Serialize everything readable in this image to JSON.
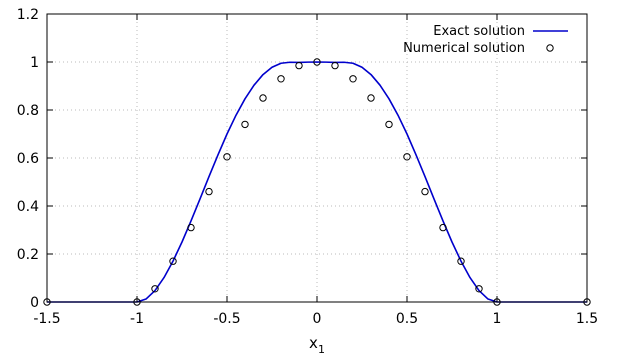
{
  "chart_data": {
    "type": "line",
    "title": "",
    "xlabel": "x",
    "xlabel_subscript": "1",
    "ylabel": "",
    "xlim": [
      -1.5,
      1.5
    ],
    "ylim": [
      0,
      1.2
    ],
    "xticks": [
      -1.5,
      -1,
      -0.5,
      0,
      0.5,
      1,
      1.5
    ],
    "xtick_labels": [
      "-1.5",
      "-1",
      "-0.5",
      "0",
      "0.5",
      "1",
      "1.5"
    ],
    "yticks": [
      0,
      0.2,
      0.4,
      0.6,
      0.8,
      1,
      1.2
    ],
    "ytick_labels": [
      "0",
      "0.2",
      "0.4",
      "0.6",
      "0.8",
      "1",
      "1.2"
    ],
    "grid": true,
    "legend_position": "top-right",
    "series": [
      {
        "name": "Exact solution",
        "style": "line",
        "color": "#0000cc",
        "x": [
          -1.5,
          -1.0,
          -0.95,
          -0.9,
          -0.85,
          -0.8,
          -0.75,
          -0.7,
          -0.65,
          -0.6,
          -0.55,
          -0.5,
          -0.45,
          -0.4,
          -0.35,
          -0.3,
          -0.25,
          -0.2,
          -0.15,
          -0.1,
          -0.05,
          0.0,
          0.05,
          0.1,
          0.15,
          0.2,
          0.25,
          0.3,
          0.35,
          0.4,
          0.45,
          0.5,
          0.55,
          0.6,
          0.65,
          0.7,
          0.75,
          0.8,
          0.85,
          0.9,
          0.95,
          1.0,
          1.5
        ],
        "y": [
          0,
          0,
          0.0123,
          0.0477,
          0.1017,
          0.1703,
          0.25,
          0.3376,
          0.4295,
          0.5225,
          0.6133,
          0.7,
          0.7783,
          0.8466,
          0.9034,
          0.9476,
          0.9782,
          0.9948,
          0.999,
          0.998,
          0.9995,
          1.0,
          0.9995,
          0.998,
          0.999,
          0.9948,
          0.9782,
          0.9476,
          0.9034,
          0.8466,
          0.7783,
          0.7,
          0.6133,
          0.5225,
          0.4295,
          0.3376,
          0.25,
          0.1703,
          0.1017,
          0.0477,
          0.0123,
          0,
          0
        ]
      },
      {
        "name": "Numerical solution",
        "style": "markers",
        "color": "#000000",
        "x": [
          -1.5,
          -1.0,
          -0.9,
          -0.8,
          -0.7,
          -0.6,
          -0.5,
          -0.4,
          -0.3,
          -0.2,
          -0.1,
          0.0,
          0.1,
          0.2,
          0.3,
          0.4,
          0.5,
          0.6,
          0.7,
          0.8,
          0.9,
          1.0,
          1.5
        ],
        "y": [
          0,
          0,
          0.055,
          0.17,
          0.31,
          0.46,
          0.605,
          0.74,
          0.85,
          0.93,
          0.985,
          1.0,
          0.985,
          0.93,
          0.85,
          0.74,
          0.605,
          0.46,
          0.31,
          0.17,
          0.055,
          0,
          0
        ]
      }
    ]
  }
}
